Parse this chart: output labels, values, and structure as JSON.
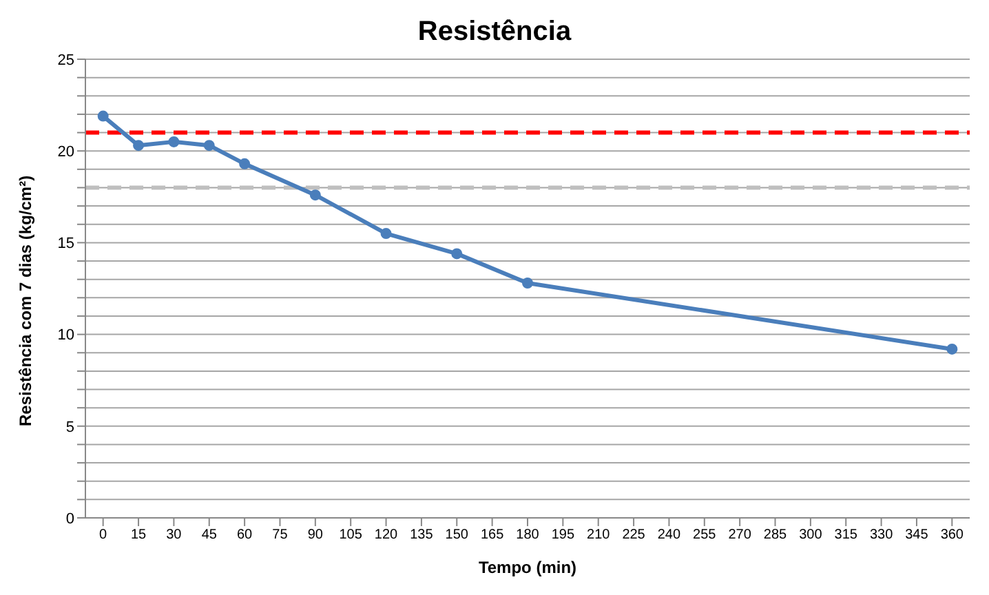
{
  "chart_data": {
    "type": "line",
    "title": "Resistência",
    "xlabel": "Tempo (min)",
    "ylabel": "Resistência com 7 dias (kg/cm²)",
    "x": [
      0,
      15,
      30,
      45,
      60,
      90,
      120,
      150,
      180,
      360
    ],
    "series": [
      {
        "color": "#4a7ebb",
        "values": [
          21.9,
          20.3,
          20.5,
          20.3,
          19.3,
          17.6,
          15.5,
          14.4,
          12.8,
          9.2
        ]
      }
    ],
    "xlim": [
      -7.5,
      367.5
    ],
    "xticks": [
      0,
      15,
      30,
      45,
      60,
      75,
      90,
      105,
      120,
      135,
      150,
      165,
      180,
      195,
      210,
      225,
      240,
      255,
      270,
      285,
      300,
      315,
      330,
      345,
      360
    ],
    "ylim": [
      0,
      25
    ],
    "yticks": [
      0,
      {
        "value": 1,
        "label": null
      },
      {
        "value": 2,
        "label": null
      },
      {
        "value": 3,
        "label": null
      },
      {
        "value": 4,
        "label": null
      },
      5,
      {
        "value": 6,
        "label": null
      },
      {
        "value": 7,
        "label": null
      },
      {
        "value": 8,
        "label": null
      },
      {
        "value": 9,
        "label": null
      },
      10,
      {
        "value": 11,
        "label": null
      },
      {
        "value": 12,
        "label": null
      },
      {
        "value": 13,
        "label": null
      },
      {
        "value": 14,
        "label": null
      },
      15,
      {
        "value": 16,
        "label": null
      },
      {
        "value": 17,
        "label": null
      },
      {
        "value": 18,
        "label": null
      },
      {
        "value": 19,
        "label": null
      },
      20,
      {
        "value": 21,
        "label": null
      },
      {
        "value": 22,
        "label": null
      },
      {
        "value": 23,
        "label": null
      },
      {
        "value": 24,
        "label": null
      },
      25
    ],
    "ref_lines": [
      {
        "axis": "y",
        "value": 21,
        "color": "#ff0000",
        "line_style": "dashed"
      },
      {
        "axis": "y",
        "value": 18,
        "color": "#bfbfbf",
        "line_style": "dashed"
      }
    ],
    "grid": "y",
    "marker": "circle",
    "line_style": "solid",
    "legend": false
  }
}
